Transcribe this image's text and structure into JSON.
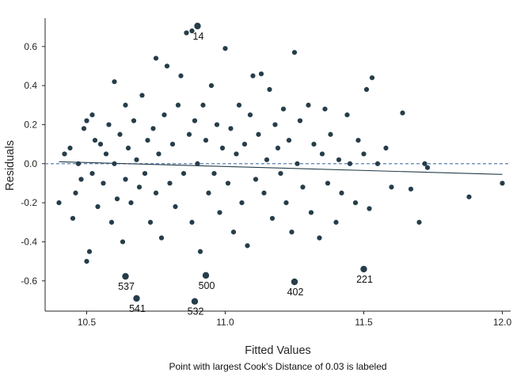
{
  "chart_data": {
    "type": "scatter",
    "title": "",
    "xlabel": "Fitted Values",
    "ylabel": "Residuals",
    "caption": "Point with largest Cook's Distance of 0.03 is labeled",
    "xlim": [
      10.35,
      12.03
    ],
    "ylim": [
      -0.755,
      0.745
    ],
    "x_ticks": [
      10.5,
      11.0,
      11.5,
      12.0
    ],
    "x_tick_labels": [
      "10.5",
      "11.0",
      "11.5",
      "12.0"
    ],
    "y_ticks": [
      -0.6,
      -0.4,
      -0.2,
      0.0,
      0.2,
      0.4,
      0.6
    ],
    "y_tick_labels": [
      "-0.6",
      "-0.4",
      "-0.2",
      "0.0",
      "0.2",
      "0.4",
      "0.6"
    ],
    "grid": false,
    "point_color": "#263d4a",
    "reference_line": {
      "y": 0,
      "color": "#5a7fb0",
      "style": "dashed"
    },
    "trend_line": {
      "x": [
        10.4,
        12.0
      ],
      "y": [
        0.01,
        -0.055
      ],
      "color": "#263d4a"
    },
    "labeled_points": [
      {
        "label": "14",
        "x": 10.9,
        "y": 0.705
      },
      {
        "label": "537",
        "x": 10.64,
        "y": -0.577
      },
      {
        "label": "541",
        "x": 10.68,
        "y": -0.69
      },
      {
        "label": "500",
        "x": 10.93,
        "y": -0.572
      },
      {
        "label": "532",
        "x": 10.89,
        "y": -0.705
      },
      {
        "label": "402",
        "x": 11.25,
        "y": -0.605
      },
      {
        "label": "221",
        "x": 11.5,
        "y": -0.54
      }
    ],
    "points": [
      [
        10.4,
        -0.2
      ],
      [
        10.42,
        0.05
      ],
      [
        10.44,
        0.08
      ],
      [
        10.45,
        -0.28
      ],
      [
        10.46,
        -0.15
      ],
      [
        10.47,
        0.0
      ],
      [
        10.48,
        -0.08
      ],
      [
        10.49,
        0.18
      ],
      [
        10.5,
        0.22
      ],
      [
        10.5,
        -0.5
      ],
      [
        10.51,
        -0.45
      ],
      [
        10.52,
        0.25
      ],
      [
        10.52,
        -0.05
      ],
      [
        10.53,
        0.12
      ],
      [
        10.54,
        -0.22
      ],
      [
        10.55,
        0.1
      ],
      [
        10.56,
        -0.1
      ],
      [
        10.57,
        0.05
      ],
      [
        10.58,
        0.2
      ],
      [
        10.59,
        -0.3
      ],
      [
        10.6,
        0.42
      ],
      [
        10.6,
        0.0
      ],
      [
        10.61,
        -0.18
      ],
      [
        10.62,
        0.15
      ],
      [
        10.63,
        -0.4
      ],
      [
        10.64,
        0.3
      ],
      [
        10.64,
        -0.08
      ],
      [
        10.65,
        0.08
      ],
      [
        10.66,
        -0.2
      ],
      [
        10.67,
        0.22
      ],
      [
        10.68,
        0.02
      ],
      [
        10.69,
        -0.12
      ],
      [
        10.7,
        0.35
      ],
      [
        10.71,
        -0.05
      ],
      [
        10.72,
        0.12
      ],
      [
        10.73,
        -0.3
      ],
      [
        10.74,
        0.18
      ],
      [
        10.75,
        0.54
      ],
      [
        10.75,
        -0.15
      ],
      [
        10.76,
        0.05
      ],
      [
        10.77,
        -0.38
      ],
      [
        10.78,
        0.25
      ],
      [
        10.79,
        0.5
      ],
      [
        10.8,
        -0.1
      ],
      [
        10.81,
        0.1
      ],
      [
        10.82,
        -0.22
      ],
      [
        10.83,
        0.3
      ],
      [
        10.84,
        0.45
      ],
      [
        10.85,
        -0.05
      ],
      [
        10.86,
        0.67
      ],
      [
        10.87,
        0.15
      ],
      [
        10.88,
        0.68
      ],
      [
        10.88,
        -0.3
      ],
      [
        10.89,
        0.22
      ],
      [
        10.9,
        0.0
      ],
      [
        10.91,
        -0.45
      ],
      [
        10.92,
        0.3
      ],
      [
        10.93,
        0.12
      ],
      [
        10.94,
        -0.15
      ],
      [
        10.95,
        0.4
      ],
      [
        10.96,
        -0.05
      ],
      [
        10.97,
        0.2
      ],
      [
        10.98,
        -0.25
      ],
      [
        10.99,
        0.08
      ],
      [
        11.0,
        0.59
      ],
      [
        11.01,
        -0.1
      ],
      [
        11.02,
        0.18
      ],
      [
        11.03,
        -0.35
      ],
      [
        11.04,
        0.05
      ],
      [
        11.05,
        0.3
      ],
      [
        11.06,
        -0.2
      ],
      [
        11.07,
        0.1
      ],
      [
        11.08,
        -0.42
      ],
      [
        11.09,
        0.25
      ],
      [
        11.1,
        0.45
      ],
      [
        11.11,
        -0.08
      ],
      [
        11.12,
        0.15
      ],
      [
        11.13,
        0.46
      ],
      [
        11.14,
        -0.15
      ],
      [
        11.15,
        0.02
      ],
      [
        11.16,
        0.38
      ],
      [
        11.17,
        -0.28
      ],
      [
        11.18,
        0.2
      ],
      [
        11.19,
        0.08
      ],
      [
        11.2,
        -0.05
      ],
      [
        11.21,
        0.28
      ],
      [
        11.22,
        -0.2
      ],
      [
        11.23,
        0.12
      ],
      [
        11.24,
        -0.35
      ],
      [
        11.25,
        0.57
      ],
      [
        11.26,
        0.0
      ],
      [
        11.27,
        0.22
      ],
      [
        11.28,
        -0.12
      ],
      [
        11.3,
        0.3
      ],
      [
        11.31,
        -0.25
      ],
      [
        11.32,
        0.1
      ],
      [
        11.34,
        -0.38
      ],
      [
        11.35,
        0.05
      ],
      [
        11.36,
        0.28
      ],
      [
        11.37,
        -0.1
      ],
      [
        11.38,
        0.15
      ],
      [
        11.4,
        -0.3
      ],
      [
        11.41,
        0.02
      ],
      [
        11.42,
        -0.15
      ],
      [
        11.44,
        0.25
      ],
      [
        11.45,
        0.0
      ],
      [
        11.47,
        -0.2
      ],
      [
        11.48,
        0.12
      ],
      [
        11.5,
        0.05
      ],
      [
        11.51,
        0.38
      ],
      [
        11.52,
        -0.23
      ],
      [
        11.53,
        0.44
      ],
      [
        11.55,
        0.0
      ],
      [
        11.58,
        0.08
      ],
      [
        11.6,
        -0.12
      ],
      [
        11.64,
        0.26
      ],
      [
        11.67,
        -0.13
      ],
      [
        11.7,
        -0.3
      ],
      [
        11.72,
        0.0
      ],
      [
        11.73,
        -0.02
      ],
      [
        11.88,
        -0.17
      ],
      [
        12.0,
        -0.1
      ]
    ]
  }
}
